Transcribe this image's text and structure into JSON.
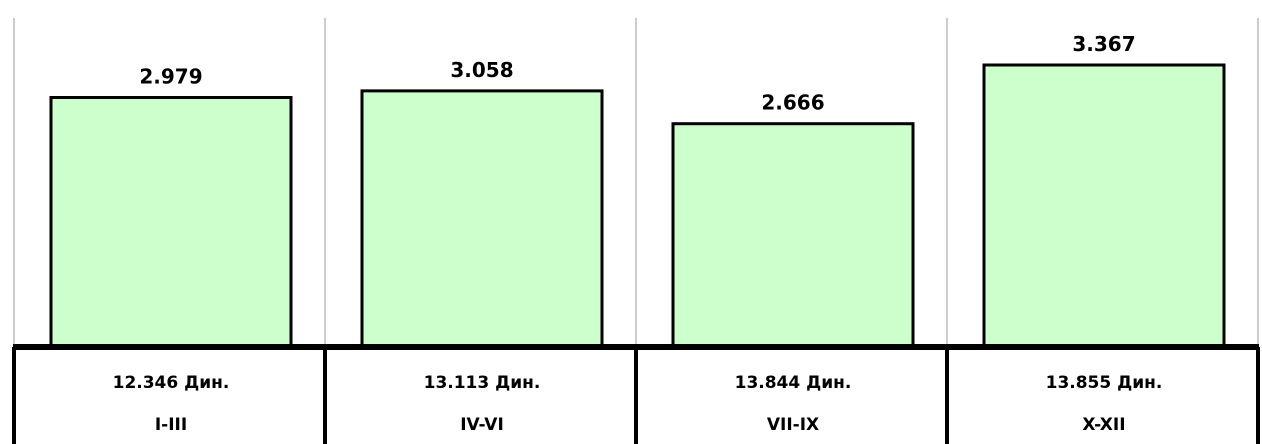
{
  "chart_data": {
    "type": "bar",
    "categories": [
      "I-III",
      "IV-VI",
      "VII-IX",
      "X-XII"
    ],
    "values": [
      2.979,
      3.058,
      2.666,
      3.367
    ],
    "value_labels": [
      "2.979",
      "3.058",
      "2.666",
      "3.367"
    ],
    "secondary_labels": [
      "12.346 Дин.",
      "13.113 Дин.",
      "13.844 Дин.",
      "13.855 Дин."
    ],
    "ylim": [
      0,
      3.367
    ],
    "grid": false,
    "legend": "none",
    "colors": {
      "bar_fill": "#ccffcc",
      "bar_stroke": "#000000",
      "divider": "#999999",
      "axis": "#000000"
    }
  }
}
